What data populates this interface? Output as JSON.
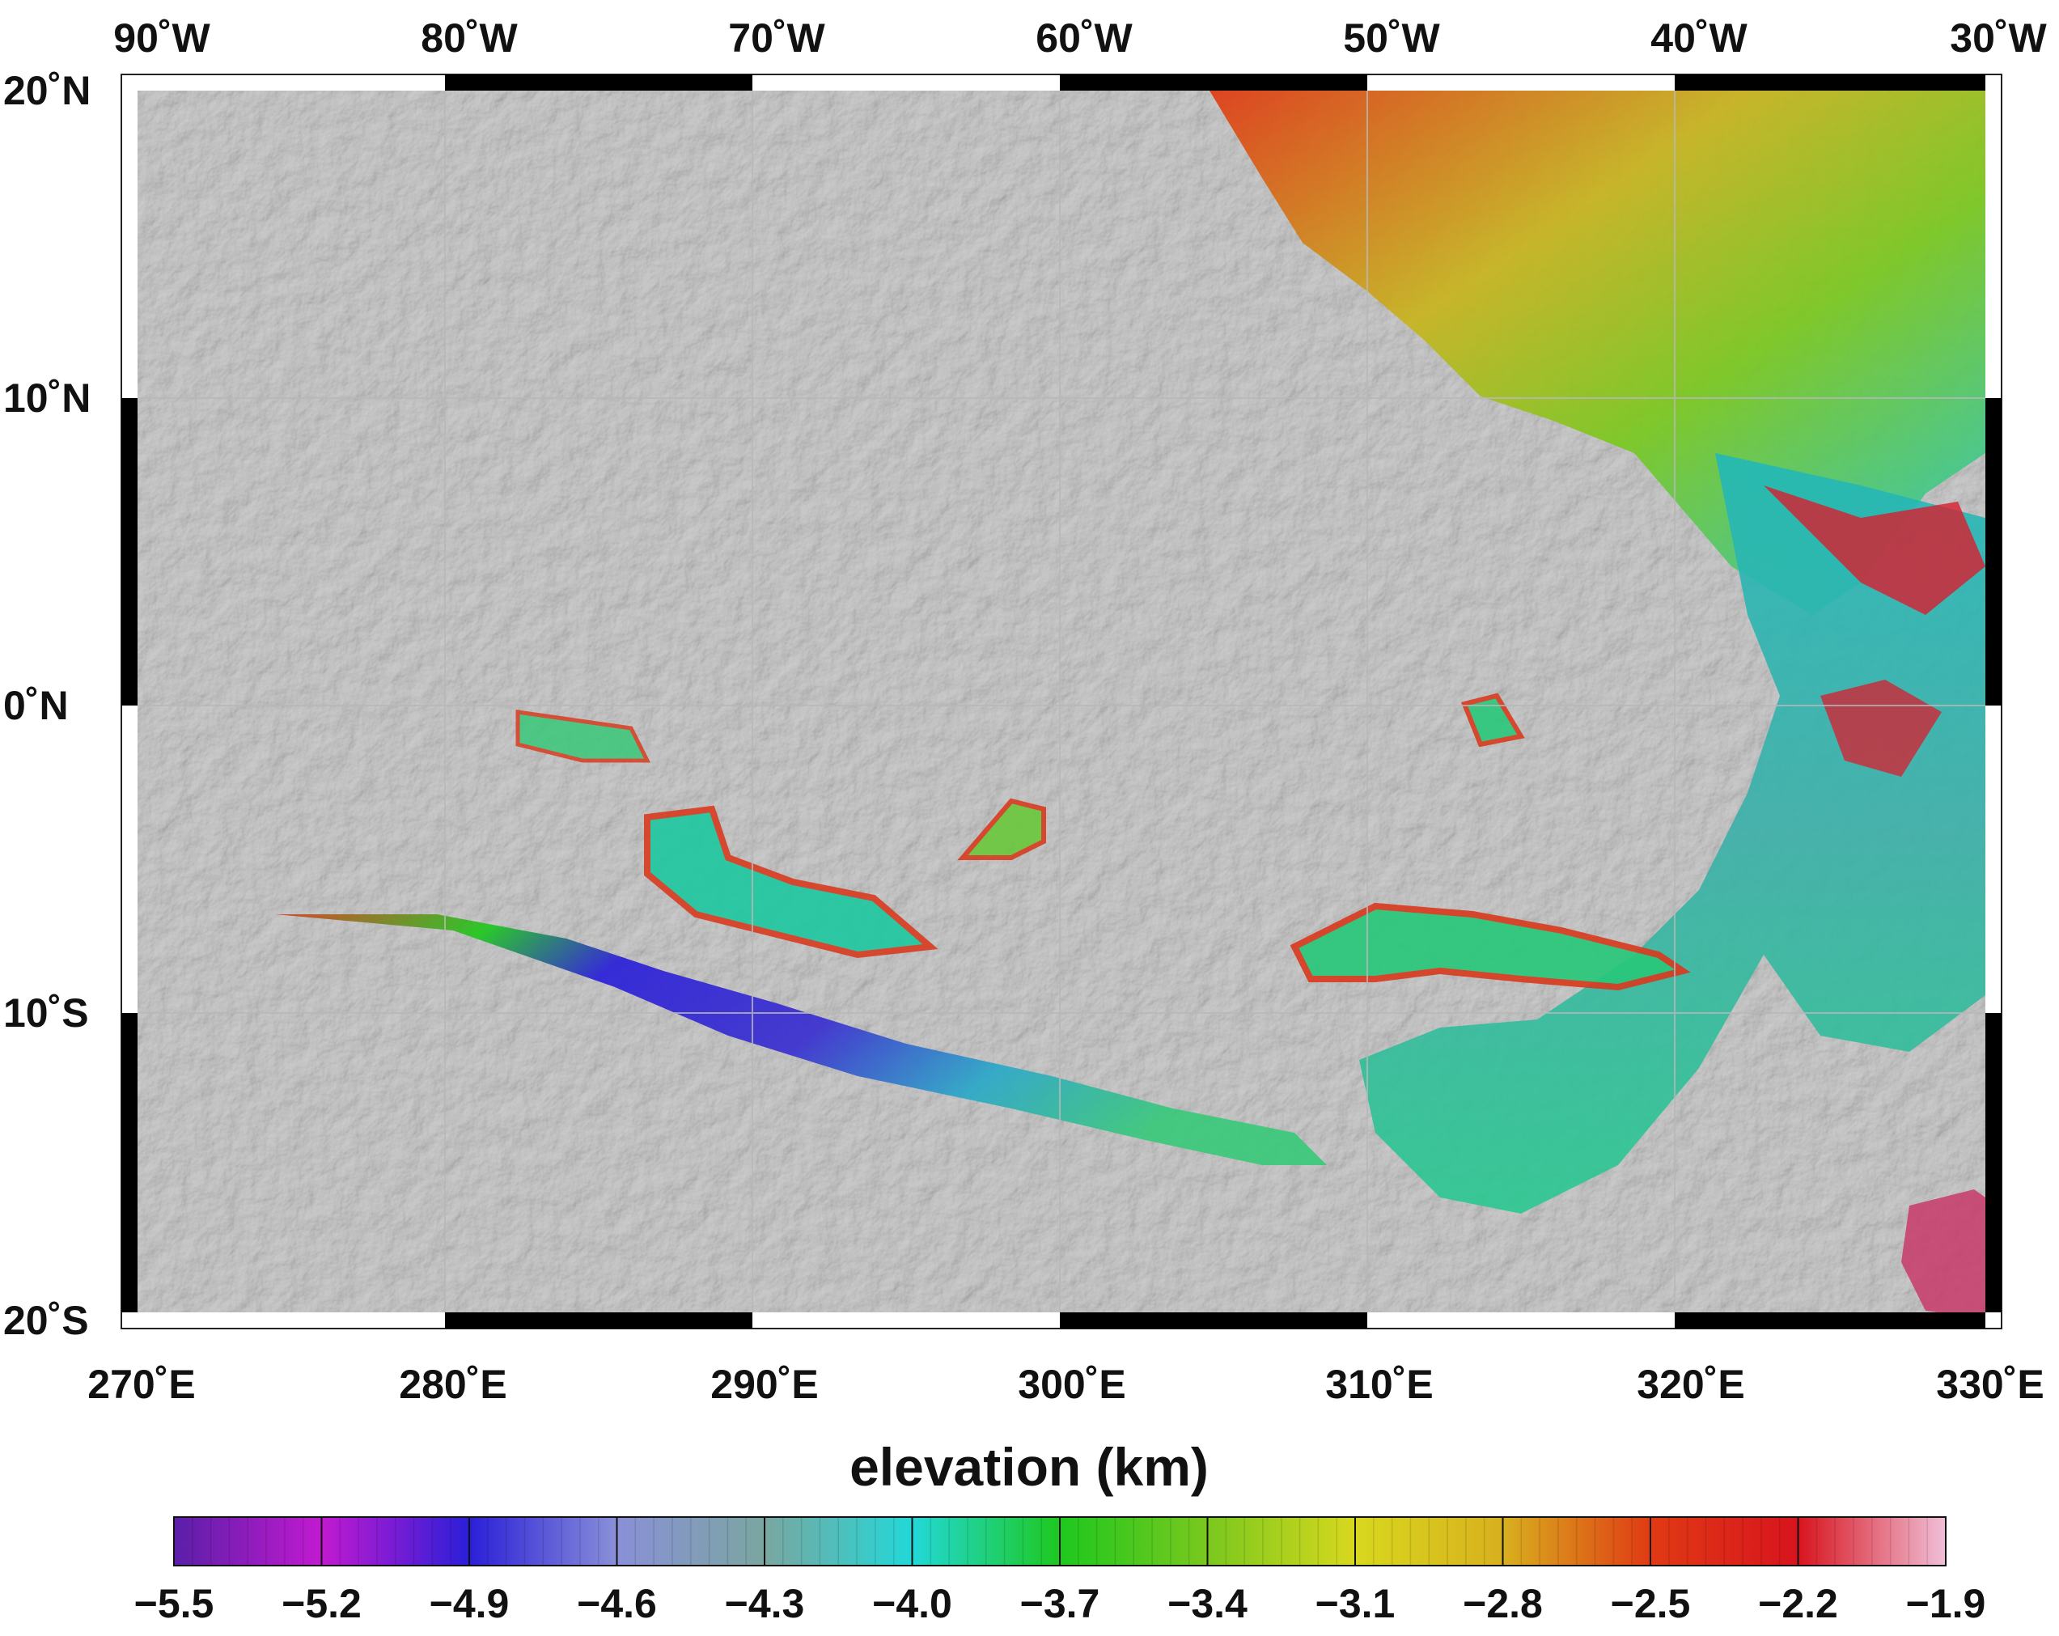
{
  "map": {
    "top_labels": [
      "90˚W",
      "80˚W",
      "70˚W",
      "60˚W",
      "50˚W",
      "40˚W",
      "30˚W"
    ],
    "bottom_labels": [
      "270˚E",
      "280˚E",
      "290˚E",
      "300˚E",
      "310˚E",
      "320˚E",
      "330˚E"
    ],
    "left_labels": [
      "20˚N",
      "10˚N",
      "0˚N",
      "10˚S",
      "20˚S"
    ],
    "lon_range_east": [
      270,
      330
    ],
    "lat_range": [
      -20,
      20
    ]
  },
  "colorbar": {
    "title": "elevation (km)",
    "tick_labels": [
      "−5.5",
      "−5.2",
      "−4.9",
      "−4.6",
      "−4.3",
      "−4.0",
      "−3.7",
      "−3.4",
      "−3.1",
      "−2.8",
      "−2.5",
      "−2.2",
      "−1.9"
    ],
    "range": [
      -5.5,
      -1.9
    ],
    "color_stops": [
      "#5a1fa8",
      "#c21ad0",
      "#2a1fd8",
      "#8a90d8",
      "#7aa6a0",
      "#22d8d8",
      "#1ec81e",
      "#7ac81e",
      "#d8d81e",
      "#d8b01e",
      "#e03a14",
      "#d8141e",
      "#f0c0d8"
    ]
  }
}
